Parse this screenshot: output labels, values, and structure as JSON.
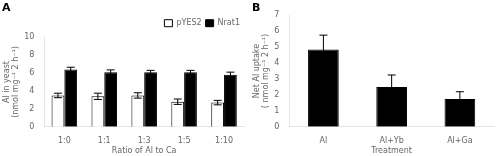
{
  "chart_data": [
    {
      "type": "bar",
      "title": "A",
      "categories": [
        "1:0",
        "1:1",
        "1:3",
        "1:5",
        "1:10"
      ],
      "series": [
        {
          "name": "pYES2",
          "color": "white",
          "values": [
            3.5,
            3.4,
            3.5,
            2.8,
            2.7
          ],
          "errors": [
            0.25,
            0.35,
            0.3,
            0.3,
            0.25
          ]
        },
        {
          "name": "Nrat1",
          "color": "black",
          "values": [
            6.4,
            6.1,
            6.1,
            6.1,
            5.8
          ],
          "errors": [
            0.25,
            0.25,
            0.2,
            0.2,
            0.3
          ]
        }
      ],
      "xlabel": "Ratio of Al to Ca",
      "ylabel": "Al in yeast\n(nmol mg⁻¹ 2 h⁻¹)",
      "ylim": [
        0,
        10
      ],
      "yticks": [
        0,
        2,
        4,
        6,
        8,
        10
      ],
      "legend": "upper right",
      "grid": false
    },
    {
      "type": "bar",
      "title": "B",
      "categories": [
        "Al",
        "Al+Yb",
        "Al+Ga"
      ],
      "values": [
        4.85,
        2.5,
        1.75
      ],
      "errors": [
        0.9,
        0.75,
        0.45
      ],
      "color": "black",
      "xlabel": "Treatment",
      "ylabel": "Net Al uptake\n( nmol mg⁻¹ 2 h⁻¹)",
      "ylim": [
        0,
        7
      ],
      "yticks": [
        0,
        1,
        2,
        3,
        4,
        5,
        6,
        7
      ],
      "grid": false
    }
  ]
}
